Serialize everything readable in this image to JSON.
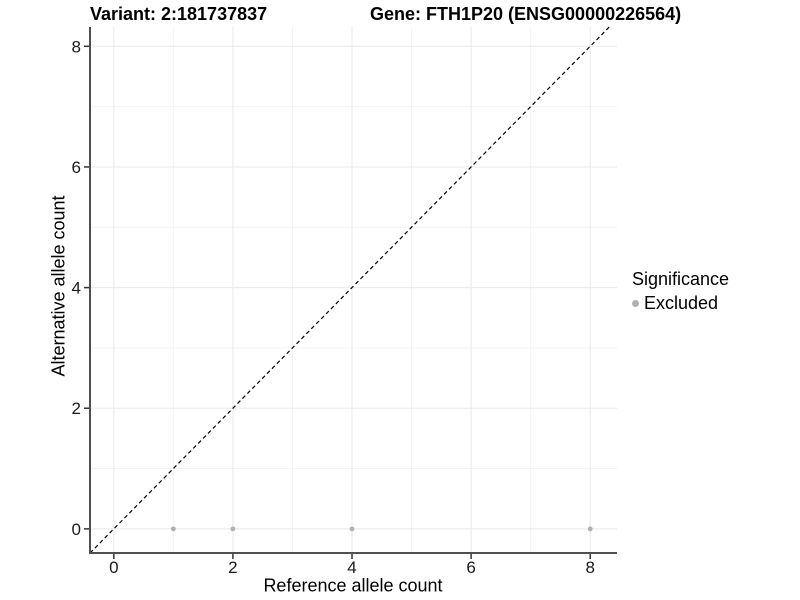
{
  "header": {
    "variant_title": "Variant: 2:181737837",
    "gene_title": "Gene: FTH1P20 (ENSG00000226564)"
  },
  "axes": {
    "x_label": "Reference allele count",
    "y_label": "Alternative allele count"
  },
  "legend": {
    "title": "Significance",
    "items": [
      {
        "label": "Excluded",
        "color": "#b0b0b0"
      }
    ]
  },
  "colors": {
    "background": "#ffffff",
    "point": "#b0b0b0",
    "axis_line": "#4f4f4f",
    "tick_mark": "#333333",
    "tick_label": "#1a1a1a",
    "grid_major": "#e8e8e8",
    "grid_minor": "#f3f3f3",
    "identity_line": "#000000"
  },
  "chart_data": {
    "type": "scatter",
    "title": "Variant: 2:181737837",
    "subtitle": "Gene: FTH1P20 (ENSG00000226564)",
    "xlabel": "Reference allele count",
    "ylabel": "Alternative allele count",
    "xlim": [
      -0.4,
      8.45
    ],
    "ylim": [
      -0.4,
      8.32
    ],
    "x_ticks": [
      0,
      2,
      4,
      6,
      8
    ],
    "y_ticks": [
      0,
      2,
      4,
      6,
      8
    ],
    "x_minor_ticks": [
      1,
      3,
      5,
      7
    ],
    "y_minor_ticks": [
      1,
      3,
      5,
      7
    ],
    "grid": "major+minor",
    "legend_position": "right",
    "series": [
      {
        "name": "Excluded",
        "color": "#b0b0b0",
        "marker": "circle",
        "points": [
          {
            "x": 1,
            "y": 0
          },
          {
            "x": 2,
            "y": 0
          },
          {
            "x": 4,
            "y": 0
          },
          {
            "x": 8,
            "y": 0
          }
        ]
      }
    ],
    "reference_line": {
      "kind": "identity",
      "equation": "y = x",
      "style": "dashed",
      "color": "#000000"
    }
  }
}
